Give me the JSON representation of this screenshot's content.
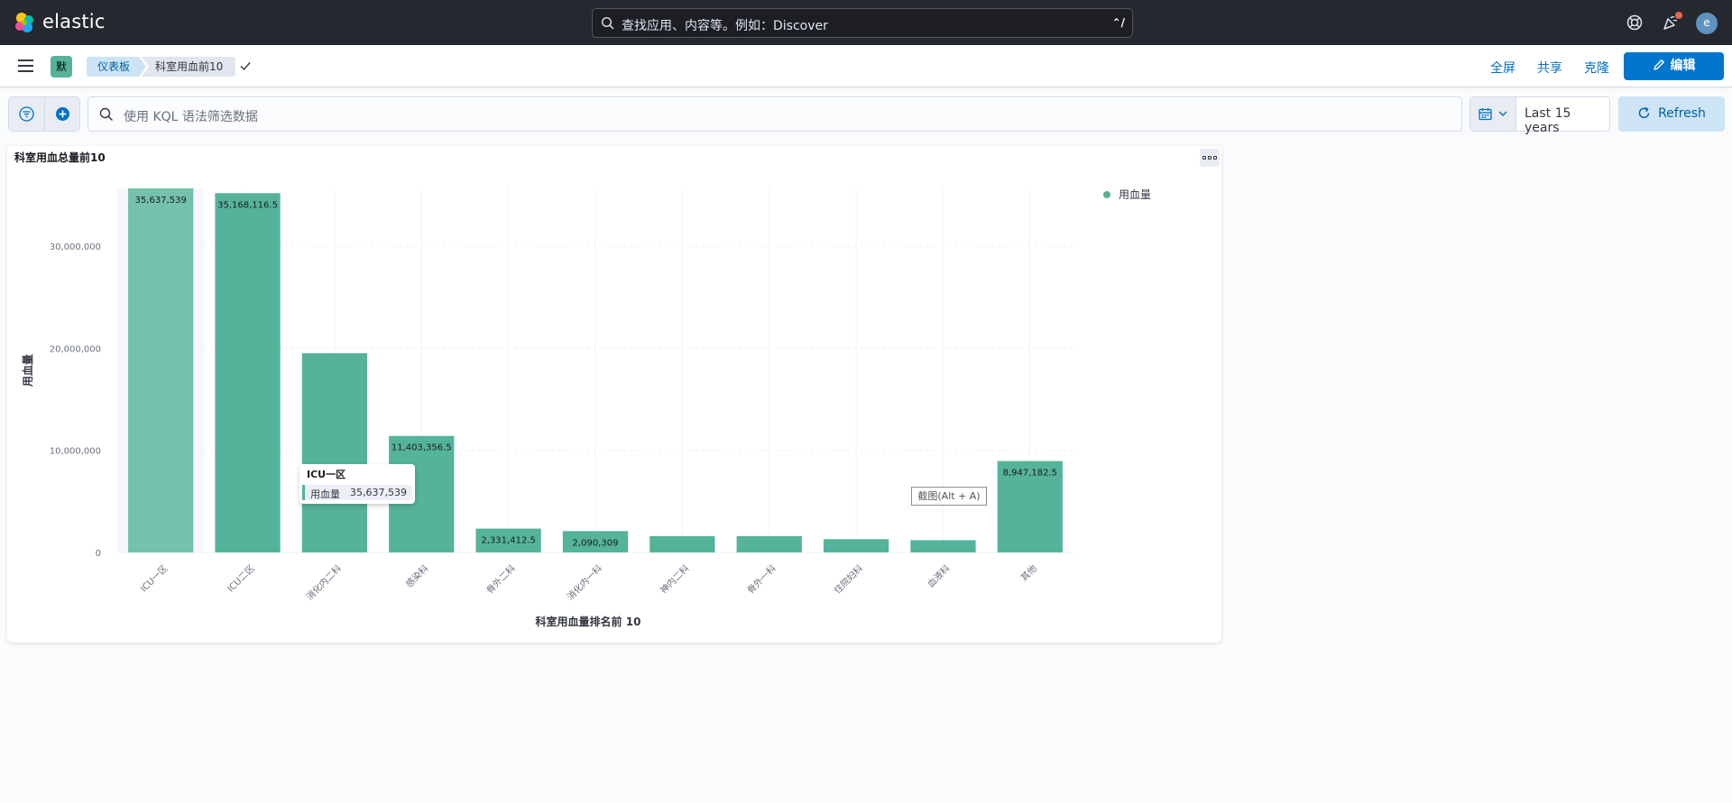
{
  "app": {
    "brand": "elastic",
    "search_placeholder": "查找应用、内容等。例如：Discover",
    "search_shortcut": "⌃/",
    "avatar_initial": "e",
    "notification_color": "#e7664c"
  },
  "nav": {
    "space_badge": "默",
    "breadcrumbs": [
      "仪表板",
      "科室用血前10"
    ],
    "links": [
      "全屏",
      "共享",
      "克隆"
    ],
    "edit_label": "编辑"
  },
  "query": {
    "kql_placeholder": "使用 KQL 语法筛选数据",
    "time_range": "Last 15 years",
    "refresh_label": "Refresh"
  },
  "panel": {
    "title": "科室用血总量前10",
    "screenshot_hint": "截图(Alt + A)"
  },
  "tooltip": {
    "title": "ICU一区",
    "label": "用血量",
    "value": "35,637,539"
  },
  "chart_data": {
    "type": "bar",
    "title": "",
    "xlabel": "科室用血量排名前 10",
    "ylabel": "用血量",
    "ylim": [
      0,
      35637539
    ],
    "yticks": [
      0,
      10000000,
      20000000,
      30000000
    ],
    "ytick_labels": [
      "0",
      "10,000,000",
      "20,000,000",
      "30,000,000"
    ],
    "categories": [
      "ICU一区",
      "ICU二区",
      "消化内二科",
      "感染科",
      "骨外二科",
      "消化内一科",
      "神内二科",
      "骨外一科",
      "住院妇科",
      "血液科",
      "其他"
    ],
    "series": [
      {
        "name": "用血量",
        "color": "#54b399",
        "values": [
          35637539,
          35168116.5,
          19500000,
          11403356.5,
          2331412.5,
          2090309,
          1600000,
          1600000,
          1300000,
          1200000,
          8947182.5
        ],
        "labels": [
          "35,637,539",
          "35,168,116.5",
          "",
          "11,403,356.5",
          "2,331,412.5",
          "2,090,309",
          "",
          "",
          "",
          "",
          "8,947,182.5"
        ]
      }
    ],
    "highlighted_index": 0,
    "legend": "top-right",
    "grid": true
  }
}
